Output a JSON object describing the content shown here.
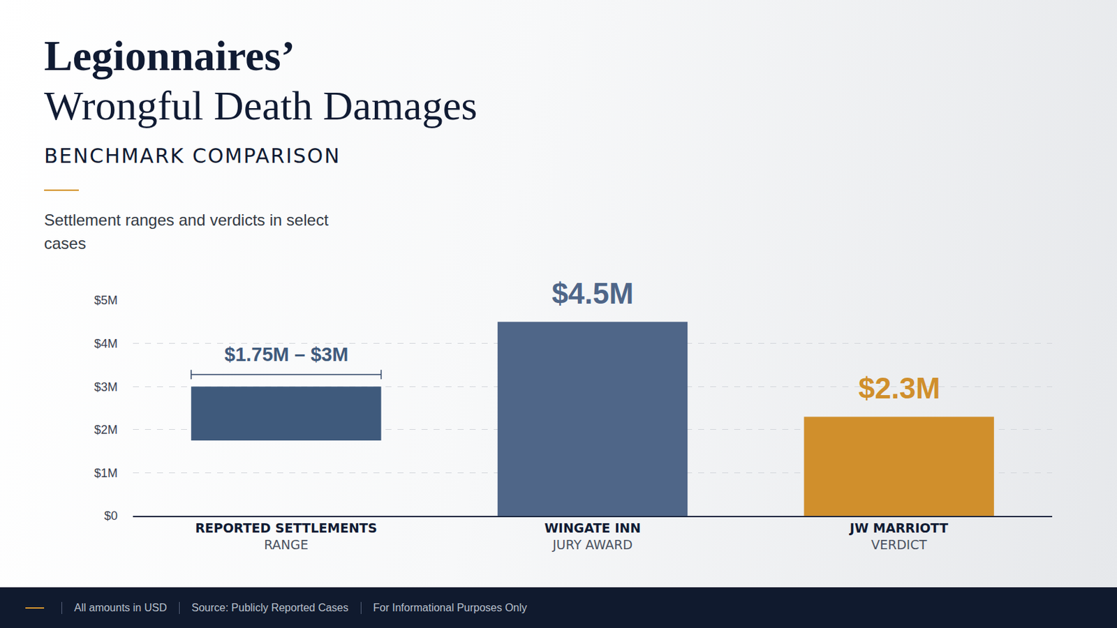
{
  "header": {
    "title_lines": [
      "Legionnaires’",
      "Wrongful Death Damages"
    ],
    "kicker": "BENCHMARK COMPARISON"
  },
  "chart_data": {
    "type": "bar",
    "subtitle": "Settlement ranges and verdicts in select cases",
    "categories": [
      "REPORTED SETTLEMENTS",
      "WINGATE INN",
      "JW MARRIOTT"
    ],
    "subcategories": [
      "RANGE",
      "JURY AWARD",
      "VERDICT"
    ],
    "low": [
      1.75,
      0,
      0
    ],
    "values": [
      3,
      4.5,
      2.3
    ],
    "value_labels": [
      "$1.75M – $3M",
      "$4.5M",
      "$2.3M"
    ],
    "data_labels": true,
    "colors": [
      "#3f5a7c",
      "#4f6688",
      "#d08f2c"
    ],
    "ylim": [
      0,
      5
    ],
    "yticks": [
      {
        "value": 0,
        "label": "$0"
      },
      {
        "value": 1,
        "label": "$1M"
      },
      {
        "value": 2,
        "label": "$2M"
      },
      {
        "value": 3,
        "label": "$3M"
      },
      {
        "value": 4,
        "label": "$4M"
      },
      {
        "value": 5,
        "label": "$5M"
      }
    ],
    "grid": true
  },
  "footer": [
    "All amounts in USD",
    "Source: Publicly Reported Cases",
    "For Informational Purposes Only"
  ]
}
